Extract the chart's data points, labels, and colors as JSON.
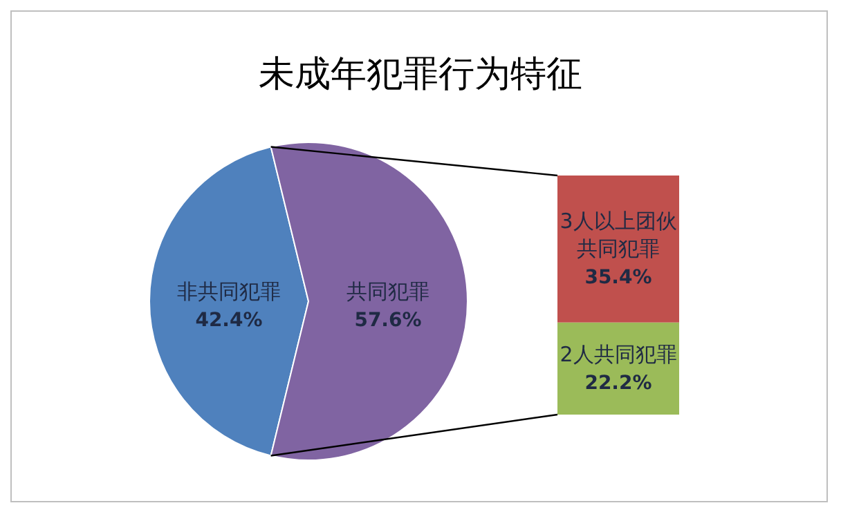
{
  "chart_data": [
    {
      "type": "pie",
      "title": "未成年犯罪行为特征",
      "categories": [
        "非共同犯罪",
        "共同犯罪"
      ],
      "values": [
        42.4,
        57.6
      ],
      "colors": [
        "#4f81bd",
        "#8064a2"
      ],
      "value_labels": [
        "42.4%",
        "57.6%"
      ]
    },
    {
      "type": "bar",
      "stacked": true,
      "categories": [
        null
      ],
      "series": [
        {
          "name": "2人共同犯罪",
          "color": "#9bbb59",
          "values": [
            22.2
          ],
          "value_labels": [
            "22.2%"
          ]
        },
        {
          "name": "3人以上团伙共同犯罪",
          "color": "#c0504d",
          "values": [
            35.4
          ],
          "value_labels": [
            "35.4%"
          ]
        }
      ]
    }
  ]
}
